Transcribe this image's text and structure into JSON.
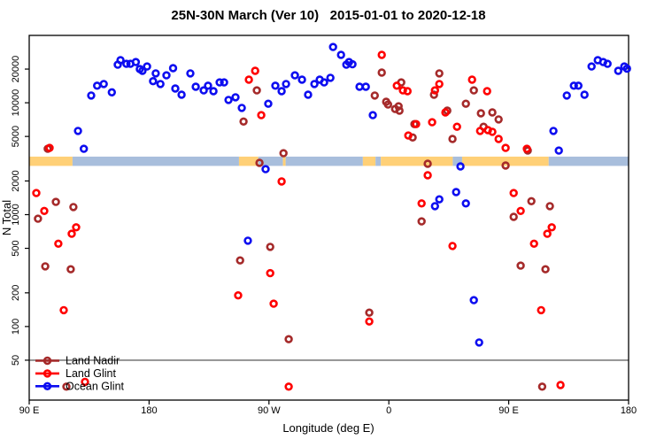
{
  "title": "25N-30N March (Ver 10)   2015-01-01 to 2020-12-18",
  "chart_data": {
    "type": "scatter",
    "title": "25N-30N March (Ver 10)   2015-01-01 to 2020-12-18",
    "xlabel": "Longitude (deg E)",
    "ylabel": "N Total",
    "x_axis": {
      "note": "longitude plotted continuously from 90E eastward around the globe to 180 (wrap)",
      "lim": [
        90,
        540
      ],
      "ticks": [
        {
          "lon": 90,
          "label": "90 E"
        },
        {
          "lon": 180,
          "label": "180"
        },
        {
          "lon": 270,
          "label": "90 W"
        },
        {
          "lon": 360,
          "label": "0"
        },
        {
          "lon": 450,
          "label": "90 E"
        },
        {
          "lon": 540,
          "label": "180"
        }
      ]
    },
    "y_axis": {
      "scale": "log",
      "lim": [
        22,
        40000
      ],
      "ticks": [
        50,
        100,
        200,
        500,
        1000,
        2000,
        5000,
        10000,
        20000
      ]
    },
    "grid": "off",
    "reference_line": {
      "value": 50,
      "color": "#7f7f7f"
    },
    "surface_band": {
      "description": "land/ocean strip drawn across plot near N=3000",
      "center_value": 3000,
      "land_color": "#FFD077",
      "ocean_color": "#A8BEDC",
      "segments": [
        {
          "type": "land",
          "from": 90,
          "to": 122.5
        },
        {
          "type": "ocean",
          "from": 122.5,
          "to": 247.5
        },
        {
          "type": "land",
          "from": 247.5,
          "to": 262
        },
        {
          "type": "ocean",
          "from": 262,
          "to": 280.5
        },
        {
          "type": "land",
          "from": 280.5,
          "to": 282.5
        },
        {
          "type": "ocean",
          "from": 282.5,
          "to": 340.5
        },
        {
          "type": "land",
          "from": 340.5,
          "to": 350
        },
        {
          "type": "ocean",
          "from": 350,
          "to": 354
        },
        {
          "type": "land",
          "from": 354,
          "to": 408
        },
        {
          "type": "ocean",
          "from": 408,
          "to": 415
        },
        {
          "type": "land",
          "from": 415,
          "to": 480
        },
        {
          "type": "ocean",
          "from": 480,
          "to": 540
        }
      ]
    },
    "legend": {
      "position": "bottom-left"
    },
    "series": [
      {
        "name": "Land Nadir",
        "color": "#A52A2A",
        "points": [
          [
            103.9,
            3880
          ],
          [
            260.9,
            12900
          ],
          [
            250.9,
            6800
          ],
          [
            280.9,
            3540
          ],
          [
            262.9,
            2900
          ],
          [
            270.9,
            515
          ],
          [
            248.3,
            390
          ],
          [
            284.8,
            77
          ],
          [
            345.3,
            133
          ],
          [
            354.7,
            18600
          ],
          [
            349.4,
            11600
          ],
          [
            358,
            10200
          ],
          [
            359.4,
            9650
          ],
          [
            364.7,
            8800
          ],
          [
            367.3,
            9300
          ],
          [
            368,
            8500
          ],
          [
            369.3,
            15200
          ],
          [
            379.2,
            6450
          ],
          [
            377.9,
            4900
          ],
          [
            393.9,
            11800
          ],
          [
            397.9,
            18300
          ],
          [
            403.9,
            8500
          ],
          [
            407.8,
            4750
          ],
          [
            423.8,
            12900
          ],
          [
            417.8,
            9800
          ],
          [
            429.1,
            8050
          ],
          [
            437.7,
            8200
          ],
          [
            442.4,
            7100
          ],
          [
            431.1,
            6100
          ],
          [
            464.3,
            3740
          ],
          [
            389.2,
            2850
          ],
          [
            384.6,
            870
          ],
          [
            447.7,
            2750
          ],
          [
            467,
            1320
          ],
          [
            480.9,
            1190
          ],
          [
            453.7,
            955
          ],
          [
            459,
            350
          ],
          [
            477.6,
            325
          ],
          [
            110,
            1300
          ],
          [
            96.6,
            920
          ],
          [
            123.2,
            1170
          ],
          [
            102,
            345
          ],
          [
            121.2,
            325
          ],
          [
            117.9,
            29
          ],
          [
            475.1,
            29
          ]
        ]
      },
      {
        "name": "Land Glint",
        "color": "#FF0000",
        "points": [
          [
            105.3,
            3950
          ],
          [
            259.6,
            19300
          ],
          [
            254.9,
            16100
          ],
          [
            264.2,
            7750
          ],
          [
            279.5,
            1980
          ],
          [
            270.9,
            300
          ],
          [
            246.9,
            190
          ],
          [
            273.5,
            160
          ],
          [
            284.8,
            29
          ],
          [
            354.7,
            26800
          ],
          [
            366,
            14200
          ],
          [
            370.6,
            12900
          ],
          [
            374,
            12700
          ],
          [
            380.5,
            6450
          ],
          [
            374.6,
            5100
          ],
          [
            392.5,
            6700
          ],
          [
            394.6,
            12900
          ],
          [
            397.9,
            14700
          ],
          [
            402.5,
            8200
          ],
          [
            411.2,
            6100
          ],
          [
            422.5,
            16100
          ],
          [
            428.5,
            5600
          ],
          [
            434.4,
            5700
          ],
          [
            437.7,
            5500
          ],
          [
            442.4,
            4750
          ],
          [
            447.7,
            3950
          ],
          [
            463.6,
            3880
          ],
          [
            433.8,
            12700
          ],
          [
            389.2,
            2250
          ],
          [
            384.6,
            1260
          ],
          [
            407.8,
            525
          ],
          [
            95.3,
            1560
          ],
          [
            101.3,
            1080
          ],
          [
            125.2,
            770
          ],
          [
            121.9,
            675
          ],
          [
            111.9,
            550
          ],
          [
            453.7,
            1560
          ],
          [
            459,
            1080
          ],
          [
            482.3,
            770
          ],
          [
            479,
            675
          ],
          [
            469,
            550
          ],
          [
            115.9,
            140
          ],
          [
            345.3,
            111
          ],
          [
            131.9,
            32
          ],
          [
            474.3,
            140
          ],
          [
            488.9,
            30
          ]
        ]
      },
      {
        "name": "Ocean Glint",
        "color": "#0D0DF0",
        "points": [
          [
            126.6,
            5600
          ],
          [
            131,
            3880
          ],
          [
            136.5,
            11600
          ],
          [
            141,
            14200
          ],
          [
            146,
            14700
          ],
          [
            152,
            12400
          ],
          [
            156.5,
            21900
          ],
          [
            158.5,
            24000
          ],
          [
            163,
            22300
          ],
          [
            166,
            22300
          ],
          [
            170,
            23100
          ],
          [
            173,
            20000
          ],
          [
            175,
            19300
          ],
          [
            178.5,
            21100
          ],
          [
            183,
            15600
          ],
          [
            185,
            18300
          ],
          [
            188.5,
            14700
          ],
          [
            193,
            17600
          ],
          [
            198,
            20400
          ],
          [
            199.7,
            13400
          ],
          [
            204.4,
            11800
          ],
          [
            211,
            18300
          ],
          [
            215,
            13900
          ],
          [
            221,
            12900
          ],
          [
            224.3,
            14200
          ],
          [
            228.3,
            12700
          ],
          [
            233,
            15200
          ],
          [
            236.3,
            15200
          ],
          [
            239.6,
            10600
          ],
          [
            244.9,
            11200
          ],
          [
            249.6,
            9000
          ],
          [
            269.5,
            9800
          ],
          [
            274.8,
            14200
          ],
          [
            279.5,
            12700
          ],
          [
            282.8,
            14700
          ],
          [
            289.5,
            17600
          ],
          [
            294.8,
            16100
          ],
          [
            299.4,
            11800
          ],
          [
            304.1,
            14700
          ],
          [
            308.1,
            16100
          ],
          [
            311.4,
            15200
          ],
          [
            316.1,
            16700
          ],
          [
            318.1,
            31500
          ],
          [
            324.1,
            26800
          ],
          [
            328.1,
            21900
          ],
          [
            330.1,
            23100
          ],
          [
            332.7,
            22100
          ],
          [
            338,
            13900
          ],
          [
            342.7,
            13900
          ],
          [
            348,
            7750
          ],
          [
            267.5,
            2550
          ],
          [
            254.2,
            585
          ],
          [
            413.8,
            2700
          ],
          [
            394.6,
            1190
          ],
          [
            397.9,
            1370
          ],
          [
            410.5,
            1590
          ],
          [
            417.8,
            1260
          ],
          [
            423.8,
            172
          ],
          [
            427.8,
            72
          ],
          [
            483.6,
            5600
          ],
          [
            487.6,
            3740
          ],
          [
            493.6,
            11600
          ],
          [
            498.9,
            14200
          ],
          [
            502.3,
            14200
          ],
          [
            506.9,
            11800
          ],
          [
            512.2,
            21100
          ],
          [
            516.9,
            24000
          ],
          [
            520.9,
            23100
          ],
          [
            524.2,
            22300
          ],
          [
            532.2,
            19300
          ],
          [
            536.8,
            21100
          ],
          [
            538.8,
            20200
          ]
        ]
      }
    ]
  }
}
